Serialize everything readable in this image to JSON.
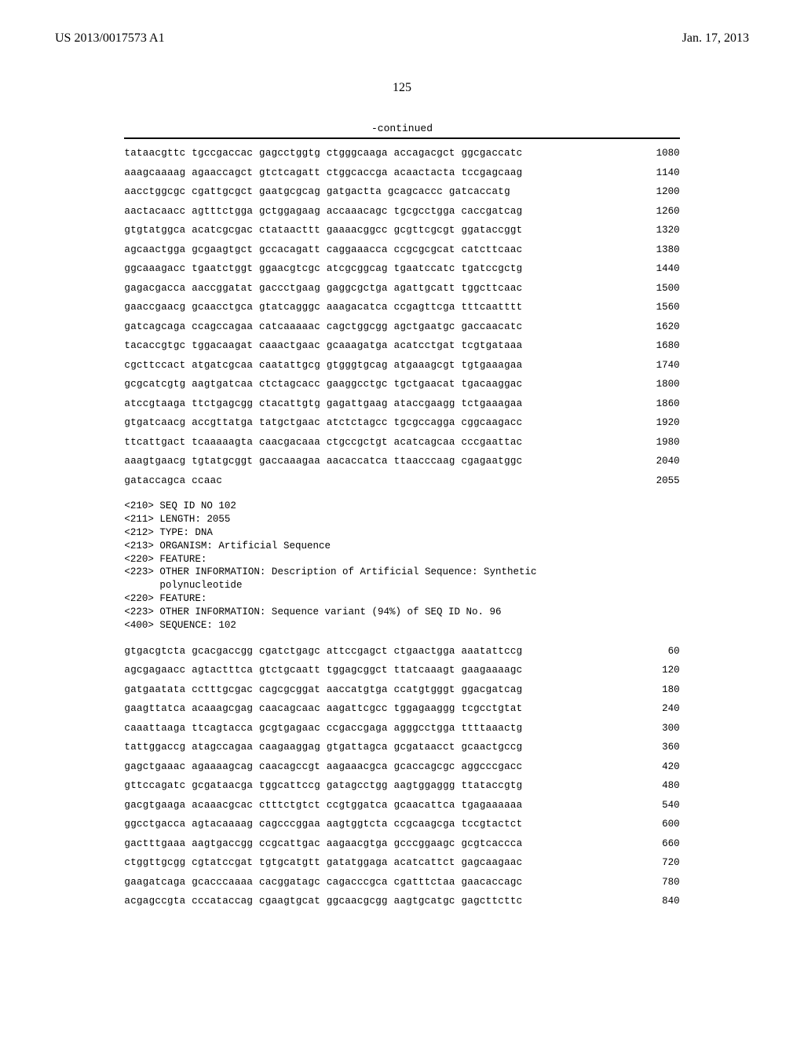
{
  "header": {
    "left": "US 2013/0017573 A1",
    "right": "Jan. 17, 2013"
  },
  "page_number": "125",
  "continued_label": "-continued",
  "sequence1": {
    "lines": [
      {
        "seq": "tataacgttc tgccgaccac gagcctggtg ctgggcaaga accagacgct ggcgaccatc",
        "pos": "1080"
      },
      {
        "seq": "aaagcaaaag agaaccagct gtctcagatt ctggcaccga acaactacta tccgagcaag",
        "pos": "1140"
      },
      {
        "seq": "aacctggcgc cgattgcgct gaatgcgcag gatgactta gcagcaccc gatcaccatg",
        "pos": "1200"
      },
      {
        "seq": "aactacaacc agtttctgga gctggagaag accaaacagc tgcgcctgga caccgatcag",
        "pos": "1260"
      },
      {
        "seq": "gtgtatggca acatcgcgac ctataacttt gaaaacggcc gcgttcgcgt ggataccggt",
        "pos": "1320"
      },
      {
        "seq": "agcaactgga gcgaagtgct gccacagatt caggaaacca ccgcgcgcat catcttcaac",
        "pos": "1380"
      },
      {
        "seq": "ggcaaagacc tgaatctggt ggaacgtcgc atcgcggcag tgaatccatc tgatccgctg",
        "pos": "1440"
      },
      {
        "seq": "gagacgacca aaccggatat gaccctgaag gaggcgctga agattgcatt tggcttcaac",
        "pos": "1500"
      },
      {
        "seq": "gaaccgaacg gcaacctgca gtatcagggc aaagacatca ccgagttcga tttcaatttt",
        "pos": "1560"
      },
      {
        "seq": "gatcagcaga ccagccagaa catcaaaaac cagctggcgg agctgaatgc gaccaacatc",
        "pos": "1620"
      },
      {
        "seq": "tacaccgtgc tggacaagat caaactgaac gcaaagatga acatcctgat tcgtgataaa",
        "pos": "1680"
      },
      {
        "seq": "cgcttccact atgatcgcaa caatattgcg gtgggtgcag atgaaagcgt tgtgaaagaa",
        "pos": "1740"
      },
      {
        "seq": "gcgcatcgtg aagtgatcaa ctctagcacc gaaggcctgc tgctgaacat tgacaaggac",
        "pos": "1800"
      },
      {
        "seq": "atccgtaaga ttctgagcgg ctacattgtg gagattgaag ataccgaagg tctgaaagaa",
        "pos": "1860"
      },
      {
        "seq": "gtgatcaacg accgttatga tatgctgaac atctctagcc tgcgccagga cggcaagacc",
        "pos": "1920"
      },
      {
        "seq": "ttcattgact tcaaaaagta caacgacaaa ctgccgctgt acatcagcaa cccgaattac",
        "pos": "1980"
      },
      {
        "seq": "aaagtgaacg tgtatgcggt gaccaaagaa aacaccatca ttaacccaag cgagaatggc",
        "pos": "2040"
      },
      {
        "seq": "gataccagca ccaac",
        "pos": "2055"
      }
    ]
  },
  "meta": {
    "lines": [
      "<210> SEQ ID NO 102",
      "<211> LENGTH: 2055",
      "<212> TYPE: DNA",
      "<213> ORGANISM: Artificial Sequence",
      "<220> FEATURE:",
      "<223> OTHER INFORMATION: Description of Artificial Sequence: Synthetic",
      "      polynucleotide",
      "<220> FEATURE:",
      "<223> OTHER INFORMATION: Sequence variant (94%) of SEQ ID No. 96",
      "",
      "<400> SEQUENCE: 102"
    ]
  },
  "sequence2": {
    "lines": [
      {
        "seq": "gtgacgtcta gcacgaccgg cgatctgagc attccgagct ctgaactgga aaatattccg",
        "pos": "60"
      },
      {
        "seq": "agcgagaacc agtactttca gtctgcaatt tggagcggct ttatcaaagt gaagaaaagc",
        "pos": "120"
      },
      {
        "seq": "gatgaatata cctttgcgac cagcgcggat aaccatgtga ccatgtgggt ggacgatcag",
        "pos": "180"
      },
      {
        "seq": "gaagttatca acaaagcgag caacagcaac aagattcgcc tggagaaggg tcgcctgtat",
        "pos": "240"
      },
      {
        "seq": "caaattaaga ttcagtacca gcgtgagaac ccgaccgaga agggcctgga ttttaaactg",
        "pos": "300"
      },
      {
        "seq": "tattggaccg atagccagaa caagaaggag gtgattagca gcgataacct gcaactgccg",
        "pos": "360"
      },
      {
        "seq": "gagctgaaac agaaaagcag caacagccgt aagaaacgca gcaccagcgc aggcccgacc",
        "pos": "420"
      },
      {
        "seq": "gttccagatc gcgataacga tggcattccg gatagcctgg aagtggaggg ttataccgtg",
        "pos": "480"
      },
      {
        "seq": "gacgtgaaga acaaacgcac ctttctgtct ccgtggatca gcaacattca tgagaaaaaa",
        "pos": "540"
      },
      {
        "seq": "ggcctgacca agtacaaaag cagcccggaa aagtggtcta ccgcaagcga tccgtactct",
        "pos": "600"
      },
      {
        "seq": "gactttgaaa aagtgaccgg ccgcattgac aagaacgtga gcccggaagc gcgtcaccca",
        "pos": "660"
      },
      {
        "seq": "ctggttgcgg cgtatccgat tgtgcatgtt gatatggaga acatcattct gagcaagaac",
        "pos": "720"
      },
      {
        "seq": "gaagatcaga gcacccaaaa cacggatagc cagacccgca cgatttctaa gaacaccagc",
        "pos": "780"
      },
      {
        "seq": "acgagccgta cccataccag cgaagtgcat ggcaacgcgg aagtgcatgc gagcttcttc",
        "pos": "840"
      }
    ]
  }
}
